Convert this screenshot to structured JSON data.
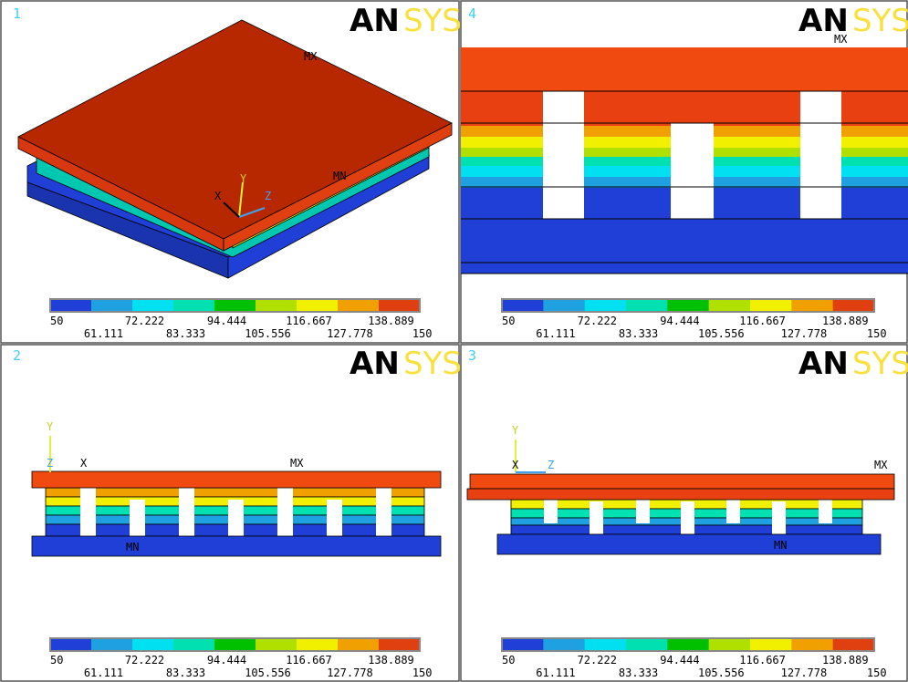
{
  "logo": {
    "an": "AN",
    "sys": "SYS"
  },
  "legend": {
    "upper": [
      "50",
      "72.222",
      "94.444",
      "116.667",
      "138.889"
    ],
    "lower": [
      "61.111",
      "83.333",
      "105.556",
      "127.778",
      "150"
    ]
  },
  "panels": [
    {
      "number": "1",
      "mx": "MX",
      "mn": "MN",
      "axes": [
        "X",
        "Y",
        "Z"
      ]
    },
    {
      "number": "4",
      "mx": "MX"
    },
    {
      "number": "2",
      "mx": "MX",
      "mn": "MN",
      "axes": [
        "X",
        "Y",
        "Z"
      ]
    },
    {
      "number": "3",
      "mx": "MX",
      "mn": "MN",
      "axes": [
        "X",
        "Y",
        "Z"
      ]
    }
  ]
}
